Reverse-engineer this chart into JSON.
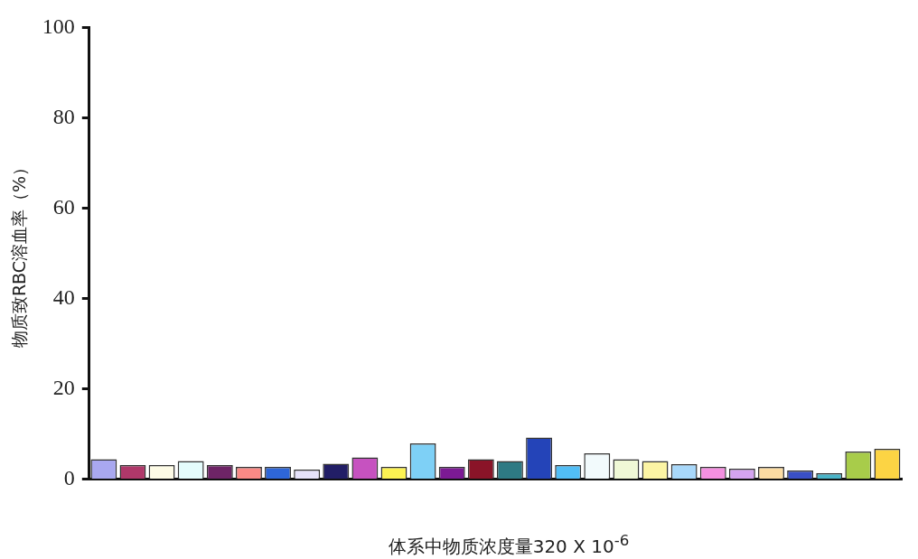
{
  "chart_data": {
    "type": "bar",
    "xlabel": "体系中物质浓度量320 X 10$^{-6}$",
    "ylabel": "物质致RBC溶血率（%）",
    "categories": [
      null,
      null,
      null,
      null,
      null,
      null,
      null,
      null,
      null,
      null,
      null,
      null,
      null,
      null,
      null,
      null,
      null,
      null,
      null,
      null,
      null,
      null,
      null,
      null,
      null,
      null,
      null,
      null
    ],
    "values": [
      4.4,
      3.1,
      3.1,
      4.0,
      3.1,
      2.7,
      2.7,
      2.1,
      3.4,
      4.8,
      2.7,
      7.9,
      2.7,
      4.4,
      4.0,
      9.2,
      3.1,
      5.7,
      4.4,
      4.0,
      3.3,
      2.7,
      2.3,
      2.7,
      1.9,
      1.3,
      6.1,
      6.7
    ],
    "colors": [
      "#a9a8f0",
      "#b0386a",
      "#fdfbe6",
      "#e4fcfc",
      "#6e2466",
      "#fb8a86",
      "#2e66d8",
      "#e6e2fa",
      "#221e66",
      "#c652c0",
      "#fcf252",
      "#7ed0f6",
      "#7c1a94",
      "#8a1428",
      "#2e7a84",
      "#2444b8",
      "#52bef6",
      "#f2fafc",
      "#f0f8d6",
      "#fcf4a4",
      "#a8d8fa",
      "#f490e0",
      "#d4a4f0",
      "#fcdca2",
      "#3a50c6",
      "#4ab4c8",
      "#a8cc4a",
      "#fcd444"
    ],
    "ylim": [
      0,
      100
    ],
    "yticks": [
      0,
      20,
      40,
      60,
      80,
      100
    ],
    "grid": false,
    "legend": false
  }
}
